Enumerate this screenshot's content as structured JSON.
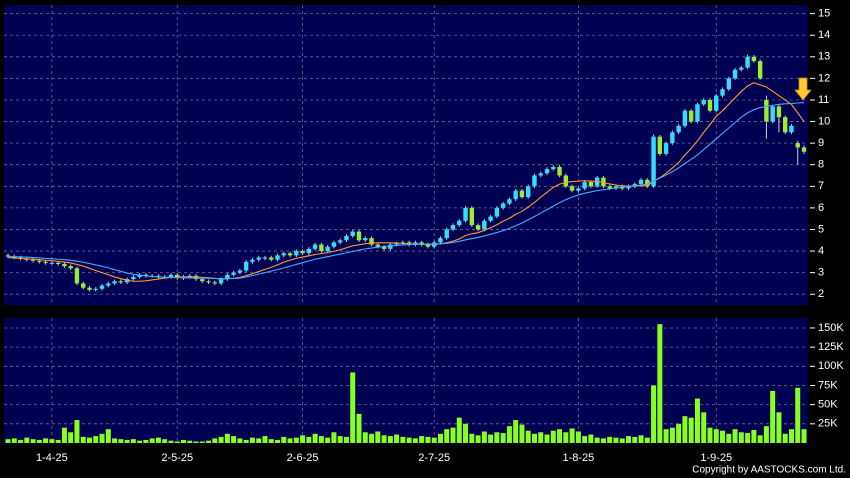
{
  "chart_data": {
    "type": "candlestick",
    "categories": [
      null,
      null,
      null,
      null,
      null,
      null,
      null,
      "1-4-25",
      null,
      null,
      null,
      null,
      null,
      null,
      null,
      null,
      null,
      null,
      null,
      null,
      null,
      null,
      null,
      null,
      null,
      null,
      null,
      "2-5-25",
      null,
      null,
      null,
      null,
      null,
      null,
      null,
      null,
      null,
      null,
      null,
      null,
      null,
      null,
      null,
      null,
      null,
      null,
      null,
      "2-6-25",
      null,
      null,
      null,
      null,
      null,
      null,
      null,
      null,
      null,
      null,
      null,
      null,
      null,
      null,
      null,
      null,
      null,
      null,
      null,
      null,
      "2-7-25",
      null,
      null,
      null,
      null,
      null,
      null,
      null,
      null,
      null,
      null,
      null,
      null,
      null,
      null,
      null,
      null,
      null,
      null,
      null,
      null,
      null,
      null,
      "1-8-25",
      null,
      null,
      null,
      null,
      null,
      null,
      null,
      null,
      null,
      null,
      null,
      null,
      null,
      null,
      null,
      null,
      null,
      null,
      null,
      null,
      null,
      "1-9-25",
      null,
      null,
      null,
      null,
      null,
      null,
      null,
      null,
      null,
      null,
      null,
      null,
      null,
      null
    ],
    "candles": [
      [
        3.8,
        3.88,
        3.67,
        3.75
      ],
      [
        3.75,
        3.83,
        3.62,
        3.7
      ],
      [
        3.7,
        3.78,
        3.57,
        3.65
      ],
      [
        3.65,
        3.73,
        3.52,
        3.6
      ],
      [
        3.6,
        3.68,
        3.47,
        3.55
      ],
      [
        3.55,
        3.63,
        3.42,
        3.5
      ],
      [
        3.5,
        3.58,
        3.37,
        3.45
      ],
      [
        3.42,
        3.53,
        3.37,
        3.45
      ],
      [
        3.45,
        3.53,
        3.32,
        3.4
      ],
      [
        3.4,
        3.48,
        3.22,
        3.3
      ],
      [
        3.3,
        3.38,
        3.12,
        3.2
      ],
      [
        3.2,
        3.28,
        2.42,
        2.5
      ],
      [
        2.5,
        2.58,
        2.22,
        2.3
      ],
      [
        2.3,
        2.38,
        2.12,
        2.2
      ],
      [
        2.2,
        2.33,
        2.12,
        2.25
      ],
      [
        2.25,
        2.48,
        2.17,
        2.4
      ],
      [
        2.4,
        2.58,
        2.32,
        2.5
      ],
      [
        2.5,
        2.68,
        2.42,
        2.6
      ],
      [
        2.6,
        2.68,
        2.47,
        2.55
      ],
      [
        2.55,
        2.78,
        2.47,
        2.7
      ],
      [
        2.7,
        2.88,
        2.62,
        2.8
      ],
      [
        2.8,
        2.98,
        2.72,
        2.9
      ],
      [
        2.9,
        2.98,
        2.77,
        2.85
      ],
      [
        2.82,
        2.93,
        2.77,
        2.85
      ],
      [
        2.85,
        2.93,
        2.72,
        2.8
      ],
      [
        2.78,
        2.88,
        2.72,
        2.8
      ],
      [
        2.8,
        2.98,
        2.72,
        2.9
      ],
      [
        2.9,
        2.98,
        2.67,
        2.75
      ],
      [
        2.75,
        2.88,
        2.67,
        2.8
      ],
      [
        2.8,
        2.93,
        2.72,
        2.85
      ],
      [
        2.85,
        2.93,
        2.62,
        2.7
      ],
      [
        2.7,
        2.78,
        2.52,
        2.6
      ],
      [
        2.6,
        2.68,
        2.47,
        2.55
      ],
      [
        2.55,
        2.63,
        2.42,
        2.5
      ],
      [
        2.5,
        2.78,
        2.42,
        2.7
      ],
      [
        2.7,
        2.98,
        2.62,
        2.9
      ],
      [
        2.9,
        3.08,
        2.82,
        3.0
      ],
      [
        3.0,
        3.18,
        2.92,
        3.1
      ],
      [
        3.1,
        3.58,
        3.02,
        3.5
      ],
      [
        3.5,
        3.68,
        3.42,
        3.6
      ],
      [
        3.6,
        3.78,
        3.52,
        3.7
      ],
      [
        3.65,
        3.78,
        3.57,
        3.7
      ],
      [
        3.7,
        3.78,
        3.52,
        3.6
      ],
      [
        3.6,
        3.88,
        3.52,
        3.8
      ],
      [
        3.8,
        3.98,
        3.72,
        3.9
      ],
      [
        3.9,
        3.98,
        3.72,
        3.8
      ],
      [
        3.8,
        4.08,
        3.72,
        4.0
      ],
      [
        4.0,
        4.08,
        3.82,
        3.9
      ],
      [
        3.9,
        4.18,
        3.82,
        4.1
      ],
      [
        4.1,
        4.38,
        4.02,
        4.3
      ],
      [
        4.3,
        4.38,
        3.92,
        4.0
      ],
      [
        4.0,
        4.28,
        3.92,
        4.2
      ],
      [
        4.2,
        4.48,
        4.12,
        4.4
      ],
      [
        4.4,
        4.58,
        4.32,
        4.5
      ],
      [
        4.5,
        4.78,
        4.42,
        4.7
      ],
      [
        4.7,
        4.98,
        4.62,
        4.9
      ],
      [
        4.9,
        4.98,
        4.42,
        4.5
      ],
      [
        4.5,
        4.68,
        4.42,
        4.6
      ],
      [
        4.6,
        4.68,
        4.22,
        4.3
      ],
      [
        4.3,
        4.38,
        4.12,
        4.2
      ],
      [
        4.2,
        4.28,
        4.02,
        4.1
      ],
      [
        4.1,
        4.38,
        4.02,
        4.3
      ],
      [
        4.3,
        4.43,
        4.22,
        4.35
      ],
      [
        4.35,
        4.48,
        4.27,
        4.4
      ],
      [
        4.4,
        4.48,
        4.22,
        4.3
      ],
      [
        4.3,
        4.48,
        4.22,
        4.4
      ],
      [
        4.4,
        4.48,
        4.22,
        4.3
      ],
      [
        4.3,
        4.38,
        4.12,
        4.2
      ],
      [
        4.2,
        4.48,
        4.12,
        4.4
      ],
      [
        4.4,
        4.68,
        4.32,
        4.6
      ],
      [
        4.6,
        5.08,
        4.52,
        5.0
      ],
      [
        5.0,
        5.28,
        4.92,
        5.2
      ],
      [
        5.2,
        5.48,
        5.12,
        5.4
      ],
      [
        5.4,
        6.08,
        5.32,
        6.0
      ],
      [
        6.0,
        6.08,
        5.12,
        5.2
      ],
      [
        5.2,
        5.28,
        4.92,
        5.0
      ],
      [
        5.0,
        5.48,
        4.92,
        5.4
      ],
      [
        5.4,
        5.68,
        5.32,
        5.6
      ],
      [
        5.6,
        6.08,
        5.52,
        6.0
      ],
      [
        6.0,
        6.28,
        5.92,
        6.2
      ],
      [
        6.2,
        6.48,
        6.12,
        6.4
      ],
      [
        6.4,
        6.88,
        6.32,
        6.8
      ],
      [
        6.8,
        6.88,
        6.42,
        6.5
      ],
      [
        6.5,
        7.08,
        6.42,
        7.0
      ],
      [
        7.0,
        7.58,
        6.92,
        7.5
      ],
      [
        7.5,
        7.68,
        7.42,
        7.6
      ],
      [
        7.6,
        7.88,
        7.52,
        7.8
      ],
      [
        7.8,
        7.98,
        7.72,
        7.9
      ],
      [
        7.9,
        7.98,
        7.42,
        7.5
      ],
      [
        7.5,
        7.58,
        6.92,
        7.0
      ],
      [
        7.0,
        7.08,
        6.72,
        6.8
      ],
      [
        6.8,
        6.98,
        6.72,
        6.9
      ],
      [
        6.9,
        7.28,
        6.82,
        7.2
      ],
      [
        7.2,
        7.28,
        6.92,
        7.0
      ],
      [
        7.0,
        7.48,
        6.92,
        7.4
      ],
      [
        7.4,
        7.48,
        6.92,
        7.0
      ],
      [
        7.0,
        7.08,
        6.82,
        6.9
      ],
      [
        6.9,
        7.08,
        6.82,
        7.0
      ],
      [
        7.0,
        7.08,
        6.82,
        6.9
      ],
      [
        6.9,
        7.08,
        6.82,
        7.0
      ],
      [
        7.0,
        7.18,
        6.92,
        7.1
      ],
      [
        7.1,
        7.38,
        7.02,
        7.3
      ],
      [
        7.3,
        7.38,
        6.92,
        7.0
      ],
      [
        7.0,
        9.4,
        6.92,
        9.3
      ],
      [
        9.3,
        9.38,
        8.42,
        8.5
      ],
      [
        8.5,
        9.08,
        8.42,
        9.0
      ],
      [
        9.0,
        9.58,
        8.92,
        9.5
      ],
      [
        9.5,
        9.88,
        9.42,
        9.8
      ],
      [
        9.8,
        10.58,
        9.72,
        10.5
      ],
      [
        10.5,
        10.58,
        9.92,
        10.0
      ],
      [
        10.0,
        10.88,
        9.92,
        10.8
      ],
      [
        10.8,
        11.08,
        10.72,
        11.0
      ],
      [
        11.0,
        11.08,
        10.42,
        10.5
      ],
      [
        10.5,
        11.28,
        10.42,
        11.2
      ],
      [
        11.2,
        11.58,
        11.12,
        11.5
      ],
      [
        11.5,
        12.08,
        11.42,
        12.0
      ],
      [
        12.0,
        12.48,
        11.92,
        12.4
      ],
      [
        12.4,
        12.58,
        12.32,
        12.5
      ],
      [
        12.5,
        13.1,
        12.42,
        13.0
      ],
      [
        13.0,
        13.08,
        12.72,
        12.8
      ],
      [
        12.8,
        12.88,
        11.92,
        12.0
      ],
      [
        11.0,
        11.2,
        9.2,
        10.0
      ],
      [
        10.0,
        10.78,
        9.92,
        10.7
      ],
      [
        10.7,
        10.78,
        9.5,
        10.2
      ],
      [
        10.2,
        10.28,
        9.42,
        9.5
      ],
      [
        9.5,
        9.88,
        9.42,
        9.8
      ],
      [
        9.0,
        9.1,
        8.0,
        8.8
      ],
      [
        8.8,
        8.9,
        8.5,
        8.6
      ]
    ],
    "up_color": "#33ddff",
    "down_color": "#99ee33",
    "ylim": [
      1.5,
      15.4
    ],
    "yticks": [
      2,
      3,
      4,
      5,
      6,
      7,
      8,
      9,
      10,
      11,
      12,
      13,
      14,
      15
    ],
    "grid": true,
    "lines": [
      {
        "color": "#ff9933",
        "values": [
          3.7,
          3.68,
          3.66,
          3.64,
          3.62,
          3.6,
          3.57,
          3.55,
          3.52,
          3.49,
          3.45,
          3.38,
          3.3,
          3.2,
          3.1,
          3.0,
          2.9,
          2.8,
          2.72,
          2.65,
          2.6,
          2.6,
          2.62,
          2.66,
          2.7,
          2.75,
          2.78,
          2.8,
          2.8,
          2.8,
          2.8,
          2.78,
          2.76,
          2.73,
          2.71,
          2.72,
          2.74,
          2.78,
          2.86,
          2.95,
          3.05,
          3.15,
          3.25,
          3.36,
          3.48,
          3.58,
          3.66,
          3.72,
          3.78,
          3.84,
          3.88,
          3.93,
          3.99,
          4.06,
          4.15,
          4.24,
          4.29,
          4.34,
          4.37,
          4.38,
          4.38,
          4.38,
          4.37,
          4.35,
          4.33,
          4.32,
          4.32,
          4.31,
          4.31,
          4.33,
          4.38,
          4.46,
          4.56,
          4.72,
          4.8,
          4.85,
          4.96,
          5.08,
          5.22,
          5.38,
          5.52,
          5.7,
          5.84,
          6.04,
          6.25,
          6.5,
          6.72,
          6.95,
          7.1,
          7.18,
          7.22,
          7.24,
          7.26,
          7.24,
          7.22,
          7.17,
          7.11,
          7.06,
          7.02,
          7.0,
          7.01,
          7.03,
          7.02,
          7.24,
          7.4,
          7.6,
          7.85,
          8.1,
          8.45,
          8.75,
          9.1,
          9.5,
          9.85,
          10.25,
          10.5,
          10.8,
          11.1,
          11.4,
          11.65,
          11.8,
          11.7,
          11.6,
          11.4,
          11.2,
          11.0,
          10.8,
          10.4,
          10.0
        ]
      },
      {
        "color": "#4aa8ff",
        "values": [
          3.75,
          3.74,
          3.73,
          3.72,
          3.7,
          3.68,
          3.66,
          3.64,
          3.62,
          3.6,
          3.57,
          3.53,
          3.48,
          3.42,
          3.36,
          3.3,
          3.22,
          3.14,
          3.06,
          2.98,
          2.92,
          2.88,
          2.85,
          2.82,
          2.8,
          2.79,
          2.78,
          2.77,
          2.76,
          2.76,
          2.75,
          2.75,
          2.74,
          2.73,
          2.72,
          2.72,
          2.73,
          2.75,
          2.8,
          2.86,
          2.93,
          3.0,
          3.07,
          3.14,
          3.22,
          3.3,
          3.38,
          3.46,
          3.54,
          3.62,
          3.68,
          3.74,
          3.8,
          3.86,
          3.92,
          3.98,
          4.04,
          4.1,
          4.14,
          4.18,
          4.21,
          4.24,
          4.26,
          4.28,
          4.3,
          4.31,
          4.32,
          4.32,
          4.33,
          4.34,
          4.36,
          4.4,
          4.45,
          4.52,
          4.58,
          4.63,
          4.7,
          4.78,
          4.86,
          4.95,
          5.05,
          5.17,
          5.3,
          5.45,
          5.6,
          5.76,
          5.92,
          6.08,
          6.24,
          6.38,
          6.5,
          6.6,
          6.68,
          6.74,
          6.8,
          6.84,
          6.88,
          6.92,
          6.96,
          6.99,
          7.02,
          7.06,
          7.1,
          7.25,
          7.38,
          7.52,
          7.68,
          7.85,
          8.05,
          8.25,
          8.45,
          8.7,
          8.95,
          9.2,
          9.45,
          9.7,
          9.95,
          10.2,
          10.4,
          10.55,
          10.65,
          10.7,
          10.75,
          10.8,
          10.82,
          10.84,
          10.86,
          10.88
        ]
      }
    ],
    "volume": {
      "color": "#88ff22",
      "values": [
        5000,
        6000,
        4000,
        7000,
        5000,
        4000,
        6000,
        5000,
        4000,
        20000,
        14000,
        30000,
        8000,
        7000,
        9000,
        12000,
        18000,
        6000,
        5000,
        4000,
        5000,
        3000,
        4000,
        6000,
        7000,
        5000,
        3000,
        2000,
        4000,
        3000,
        2000,
        2000,
        3000,
        6000,
        8000,
        12000,
        9000,
        6000,
        4000,
        7000,
        6000,
        9000,
        5000,
        4000,
        8000,
        6000,
        7000,
        10000,
        8000,
        12000,
        9000,
        7000,
        14000,
        9000,
        8000,
        92000,
        38000,
        14000,
        12000,
        15000,
        10000,
        9000,
        11000,
        8000,
        7000,
        6000,
        9000,
        8000,
        7000,
        12000,
        18000,
        20000,
        33000,
        25000,
        12000,
        10000,
        15000,
        11000,
        14000,
        13000,
        22000,
        30000,
        24000,
        16000,
        12000,
        14000,
        11000,
        16000,
        18000,
        14000,
        19000,
        15000,
        9000,
        11000,
        7000,
        6000,
        8000,
        7000,
        6000,
        9000,
        8000,
        10000,
        7000,
        75000,
        155000,
        18000,
        20000,
        25000,
        35000,
        33000,
        58000,
        40000,
        20000,
        18000,
        16000,
        12000,
        18000,
        14000,
        13000,
        17000,
        10000,
        22000,
        68000,
        40000,
        12000,
        18000,
        72000,
        18000
      ],
      "ylim": [
        0,
        163000
      ],
      "yticks": [
        {
          "value": 25000,
          "label": "25K"
        },
        {
          "value": 50000,
          "label": "50K"
        },
        {
          "value": 75000,
          "label": "75K"
        },
        {
          "value": 100000,
          "label": "100K"
        },
        {
          "value": 125000,
          "label": "125K"
        },
        {
          "value": 150000,
          "label": "150K"
        }
      ]
    }
  },
  "footer": {
    "copyright": "Copyright by AASTOCKS.com Ltd."
  }
}
